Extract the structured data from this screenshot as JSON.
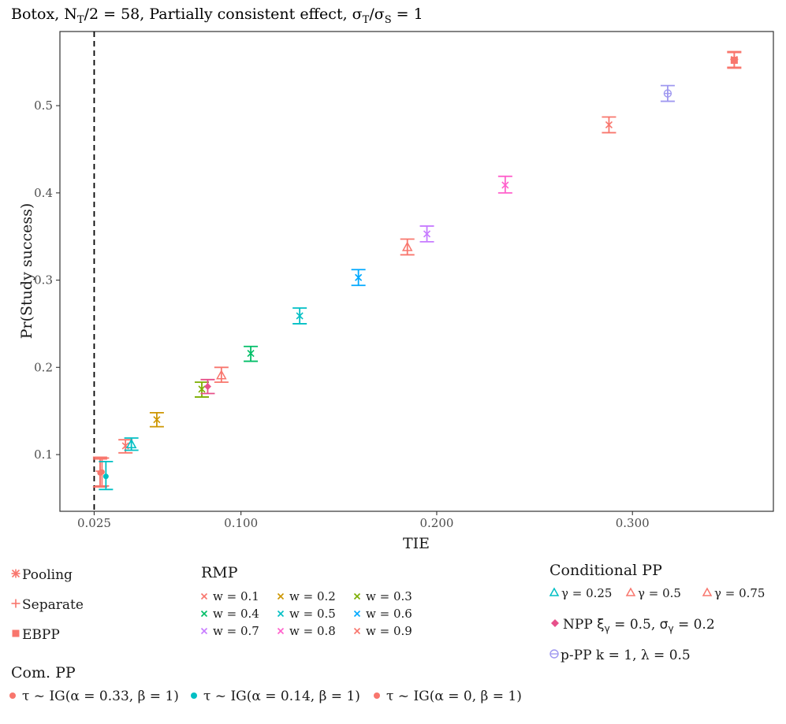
{
  "chart_data": {
    "type": "scatter",
    "title": "Botox, N_T/2 = 58, Partially consistent effect, σ_T/σ_S = 1",
    "title_parts": {
      "prefix": "Botox, N",
      "sub1": "T",
      "mid": "/2 = 58, Partially consistent effect, σ",
      "sub2": "T",
      "slash": "/σ",
      "sub3": "S",
      "suffix": " = 1"
    },
    "xlabel": "TIE",
    "ylabel": "Pr(Study success)",
    "xlim": [
      0.0075,
      0.372
    ],
    "ylim": [
      0.035,
      0.585
    ],
    "xticks": [
      0.025,
      0.1,
      0.2,
      0.3
    ],
    "xtick_labels": [
      "0.025",
      "0.100",
      "0.200",
      "0.300"
    ],
    "yticks": [
      0.1,
      0.2,
      0.3,
      0.4,
      0.5
    ],
    "ytick_labels": [
      "0.1",
      "0.2",
      "0.3",
      "0.4",
      "0.5"
    ],
    "reference_line": {
      "x": 0.025,
      "style": "dashed"
    },
    "colors": {
      "salmon": "#F8766D",
      "gold": "#CD9600",
      "olive": "#7CAE00",
      "green": "#00BE67",
      "teal": "#00BFC4",
      "blue": "#00A9FF",
      "purple": "#C77CFF",
      "pink": "#FF61CC",
      "lavender": "#9F98F0",
      "npp": "#E7508A"
    },
    "points": [
      {
        "method": "Pooling",
        "x": 0.352,
        "y": 0.553,
        "lo": 0.544,
        "hi": 0.562,
        "shape": "asterisk",
        "color": "salmon"
      },
      {
        "method": "EBPP",
        "x": 0.352,
        "y": 0.552,
        "lo": 0.543,
        "hi": 0.561,
        "shape": "square",
        "color": "salmon"
      },
      {
        "method": "p-PP k = 1, λ = 0.5",
        "x": 0.318,
        "y": 0.514,
        "lo": 0.505,
        "hi": 0.523,
        "shape": "circle-open",
        "color": "lavender"
      },
      {
        "method": "RMP w = 0.9",
        "x": 0.288,
        "y": 0.478,
        "lo": 0.469,
        "hi": 0.487,
        "shape": "x",
        "color": "salmon"
      },
      {
        "method": "RMP w = 0.8",
        "x": 0.235,
        "y": 0.409,
        "lo": 0.4,
        "hi": 0.419,
        "shape": "x",
        "color": "pink"
      },
      {
        "method": "RMP w = 0.7",
        "x": 0.195,
        "y": 0.353,
        "lo": 0.344,
        "hi": 0.362,
        "shape": "x",
        "color": "purple"
      },
      {
        "method": "Conditional PP γ = 0.75",
        "x": 0.185,
        "y": 0.338,
        "lo": 0.329,
        "hi": 0.347,
        "shape": "triangle-open",
        "color": "salmon"
      },
      {
        "method": "RMP w = 0.6",
        "x": 0.16,
        "y": 0.303,
        "lo": 0.294,
        "hi": 0.312,
        "shape": "x",
        "color": "blue"
      },
      {
        "method": "RMP w = 0.5",
        "x": 0.13,
        "y": 0.259,
        "lo": 0.25,
        "hi": 0.268,
        "shape": "x",
        "color": "teal"
      },
      {
        "method": "RMP w = 0.4",
        "x": 0.105,
        "y": 0.216,
        "lo": 0.207,
        "hi": 0.224,
        "shape": "x",
        "color": "green"
      },
      {
        "method": "Conditional PP γ = 0.5",
        "x": 0.09,
        "y": 0.191,
        "lo": 0.183,
        "hi": 0.2,
        "shape": "triangle-open",
        "color": "salmon"
      },
      {
        "method": "RMP w = 0.3",
        "x": 0.08,
        "y": 0.175,
        "lo": 0.166,
        "hi": 0.183,
        "shape": "x",
        "color": "olive"
      },
      {
        "method": "NPP ξγ = 0.5, σγ = 0.2",
        "x": 0.083,
        "y": 0.178,
        "lo": 0.17,
        "hi": 0.186,
        "shape": "diamond",
        "color": "npp"
      },
      {
        "method": "RMP w = 0.2",
        "x": 0.057,
        "y": 0.14,
        "lo": 0.132,
        "hi": 0.148,
        "shape": "x",
        "color": "gold"
      },
      {
        "method": "RMP w = 0.1",
        "x": 0.041,
        "y": 0.11,
        "lo": 0.102,
        "hi": 0.117,
        "shape": "x",
        "color": "salmon"
      },
      {
        "method": "Conditional PP γ = 0.25",
        "x": 0.044,
        "y": 0.112,
        "lo": 0.105,
        "hi": 0.119,
        "shape": "triangle-open",
        "color": "teal"
      },
      {
        "method": "Separate",
        "x": 0.028,
        "y": 0.081,
        "lo": 0.063,
        "hi": 0.097,
        "shape": "plus",
        "color": "salmon"
      },
      {
        "method": "Com. PP τ ~ IG(α = 0.33, β = 1)",
        "x": 0.028,
        "y": 0.079,
        "lo": 0.063,
        "hi": 0.095,
        "shape": "circle",
        "color": "salmon"
      },
      {
        "method": "Com. PP τ ~ IG(α = 0, β = 1)",
        "x": 0.029,
        "y": 0.08,
        "lo": 0.064,
        "hi": 0.096,
        "shape": "circle",
        "color": "salmon"
      },
      {
        "method": "Com. PP τ ~ IG(α = 0.14, β = 1)",
        "x": 0.031,
        "y": 0.075,
        "lo": 0.06,
        "hi": 0.092,
        "shape": "circle",
        "color": "teal"
      }
    ]
  },
  "legend": {
    "basic": [
      {
        "label": "Pooling",
        "shape": "asterisk",
        "color": "salmon"
      },
      {
        "label": "Separate",
        "shape": "plus",
        "color": "salmon"
      },
      {
        "label": "EBPP",
        "shape": "square",
        "color": "salmon"
      }
    ],
    "rmp": {
      "title": "RMP",
      "items": [
        {
          "label": "w = 0.1",
          "color": "salmon"
        },
        {
          "label": "w = 0.2",
          "color": "gold"
        },
        {
          "label": "w = 0.3",
          "color": "olive"
        },
        {
          "label": "w = 0.4",
          "color": "green"
        },
        {
          "label": "w = 0.5",
          "color": "teal"
        },
        {
          "label": "w = 0.6",
          "color": "blue"
        },
        {
          "label": "w = 0.7",
          "color": "purple"
        },
        {
          "label": "w = 0.8",
          "color": "pink"
        },
        {
          "label": "w = 0.9",
          "color": "salmon"
        }
      ]
    },
    "cond": {
      "title": "Conditional PP",
      "items": [
        {
          "label": "γ = 0.25",
          "color": "teal"
        },
        {
          "label": "γ = 0.5",
          "color": "salmon"
        },
        {
          "label": "γ = 0.75",
          "color": "salmon"
        }
      ],
      "npp_label": "NPP ξγ = 0.5, σγ = 0.2",
      "npp": {
        "name": "NPP",
        "xi": "ξ",
        "xi_sub": "γ",
        "xi_val": " = 0.5, ",
        "sig": "σ",
        "sig_sub": "γ",
        "sig_val": " = 0.2"
      },
      "ppp_label": "p-PP k = 1, λ = 0.5"
    },
    "compp": {
      "title": "Com. PP",
      "items": [
        {
          "label": "τ ~ IG(α = 0.33, β = 1)",
          "color": "salmon"
        },
        {
          "label": "τ ~ IG(α = 0.14, β = 1)",
          "color": "teal"
        },
        {
          "label": "τ ~ IG(α = 0, β = 1)",
          "color": "salmon"
        }
      ]
    }
  }
}
